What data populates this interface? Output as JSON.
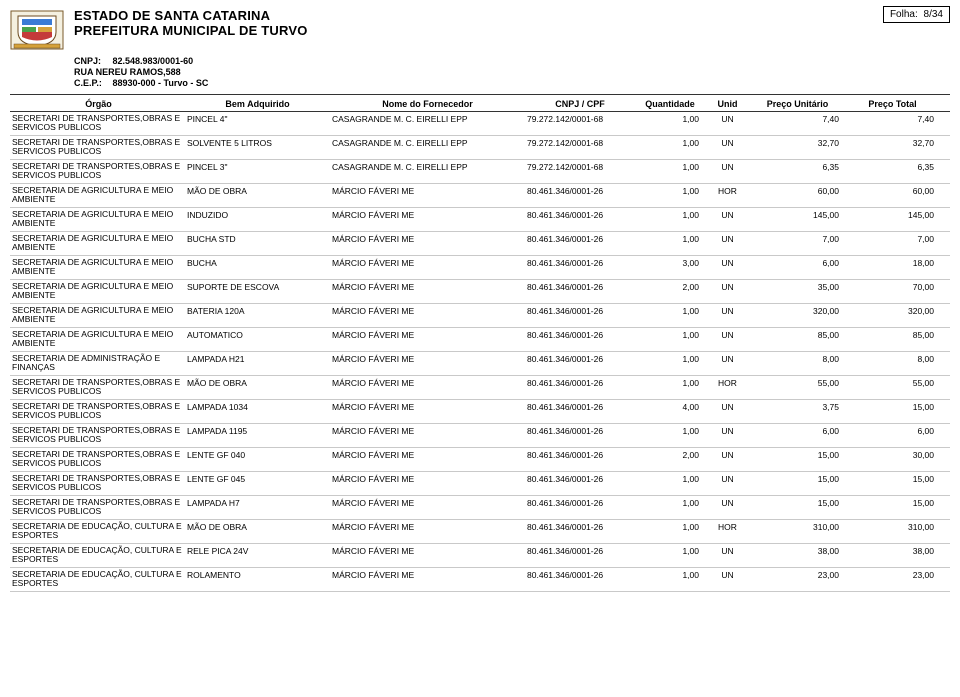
{
  "folha": {
    "label": "Folha:",
    "value": "8/34"
  },
  "header": {
    "title1": "ESTADO DE SANTA CATARINA",
    "title2": "PREFEITURA MUNICIPAL DE TURVO",
    "cnpj_label": "CNPJ:",
    "cnpj_value": "82.548.983/0001-60",
    "addr": "RUA NEREU RAMOS,588",
    "cep_label": "C.E.P.:",
    "cep_value": "88930-000   -   Turvo - SC"
  },
  "columns": {
    "orgao": "Órgão",
    "bem": "Bem Adquirido",
    "fornecedor": "Nome do Fornecedor",
    "cnpj": "CNPJ / CPF",
    "qtd": "Quantidade",
    "unid": "Unid",
    "pu": "Preço Unitário",
    "pt": "Preço Total"
  },
  "rows": [
    {
      "orgao": "SECRETARI DE TRANSPORTES,OBRAS E SERVICOS PUBLICOS",
      "bem": "PINCEL 4\"",
      "forn": "CASAGRANDE M. C. EIRELLI  EPP",
      "cnpj": "79.272.142/0001-68",
      "qtd": "1,00",
      "unid": "UN",
      "pu": "7,40",
      "pt": "7,40"
    },
    {
      "orgao": "SECRETARI DE TRANSPORTES,OBRAS E SERVICOS PUBLICOS",
      "bem": "SOLVENTE 5 LITROS",
      "forn": "CASAGRANDE M. C. EIRELLI  EPP",
      "cnpj": "79.272.142/0001-68",
      "qtd": "1,00",
      "unid": "UN",
      "pu": "32,70",
      "pt": "32,70"
    },
    {
      "orgao": "SECRETARI DE TRANSPORTES,OBRAS E SERVICOS PUBLICOS",
      "bem": "PINCEL 3\"",
      "forn": "CASAGRANDE M. C. EIRELLI  EPP",
      "cnpj": "79.272.142/0001-68",
      "qtd": "1,00",
      "unid": "UN",
      "pu": "6,35",
      "pt": "6,35"
    },
    {
      "orgao": "SECRETARIA DE AGRICULTURA E MEIO AMBIENTE",
      "bem": "MÃO DE OBRA",
      "forn": "MÁRCIO FÁVERI ME",
      "cnpj": "80.461.346/0001-26",
      "qtd": "1,00",
      "unid": "HOR",
      "pu": "60,00",
      "pt": "60,00"
    },
    {
      "orgao": "SECRETARIA DE AGRICULTURA E MEIO AMBIENTE",
      "bem": "INDUZIDO",
      "forn": "MÁRCIO FÁVERI ME",
      "cnpj": "80.461.346/0001-26",
      "qtd": "1,00",
      "unid": "UN",
      "pu": "145,00",
      "pt": "145,00"
    },
    {
      "orgao": "SECRETARIA DE AGRICULTURA E MEIO AMBIENTE",
      "bem": "BUCHA STD",
      "forn": "MÁRCIO FÁVERI ME",
      "cnpj": "80.461.346/0001-26",
      "qtd": "1,00",
      "unid": "UN",
      "pu": "7,00",
      "pt": "7,00"
    },
    {
      "orgao": "SECRETARIA DE AGRICULTURA E MEIO AMBIENTE",
      "bem": "BUCHA",
      "forn": "MÁRCIO FÁVERI ME",
      "cnpj": "80.461.346/0001-26",
      "qtd": "3,00",
      "unid": "UN",
      "pu": "6,00",
      "pt": "18,00"
    },
    {
      "orgao": "SECRETARIA DE AGRICULTURA E MEIO AMBIENTE",
      "bem": "SUPORTE DE ESCOVA",
      "forn": "MÁRCIO FÁVERI ME",
      "cnpj": "80.461.346/0001-26",
      "qtd": "2,00",
      "unid": "UN",
      "pu": "35,00",
      "pt": "70,00"
    },
    {
      "orgao": "SECRETARIA DE AGRICULTURA E MEIO AMBIENTE",
      "bem": "BATERIA 120A",
      "forn": "MÁRCIO FÁVERI ME",
      "cnpj": "80.461.346/0001-26",
      "qtd": "1,00",
      "unid": "UN",
      "pu": "320,00",
      "pt": "320,00"
    },
    {
      "orgao": "SECRETARIA DE AGRICULTURA E MEIO AMBIENTE",
      "bem": "AUTOMATICO",
      "forn": "MÁRCIO FÁVERI ME",
      "cnpj": "80.461.346/0001-26",
      "qtd": "1,00",
      "unid": "UN",
      "pu": "85,00",
      "pt": "85,00"
    },
    {
      "orgao": "SECRETARIA DE ADMINISTRAÇÃO E FINANÇAS",
      "bem": "LAMPADA H21",
      "forn": "MÁRCIO FÁVERI ME",
      "cnpj": "80.461.346/0001-26",
      "qtd": "1,00",
      "unid": "UN",
      "pu": "8,00",
      "pt": "8,00"
    },
    {
      "orgao": "SECRETARI DE TRANSPORTES,OBRAS E SERVICOS PUBLICOS",
      "bem": "MÃO DE OBRA",
      "forn": "MÁRCIO FÁVERI ME",
      "cnpj": "80.461.346/0001-26",
      "qtd": "1,00",
      "unid": "HOR",
      "pu": "55,00",
      "pt": "55,00"
    },
    {
      "orgao": "SECRETARI DE TRANSPORTES,OBRAS E SERVICOS PUBLICOS",
      "bem": "LAMPADA 1034",
      "forn": "MÁRCIO FÁVERI ME",
      "cnpj": "80.461.346/0001-26",
      "qtd": "4,00",
      "unid": "UN",
      "pu": "3,75",
      "pt": "15,00"
    },
    {
      "orgao": "SECRETARI DE TRANSPORTES,OBRAS E SERVICOS PUBLICOS",
      "bem": "LAMPADA 1195",
      "forn": "MÁRCIO FÁVERI ME",
      "cnpj": "80.461.346/0001-26",
      "qtd": "1,00",
      "unid": "UN",
      "pu": "6,00",
      "pt": "6,00"
    },
    {
      "orgao": "SECRETARI DE TRANSPORTES,OBRAS E SERVICOS PUBLICOS",
      "bem": "LENTE GF 040",
      "forn": "MÁRCIO FÁVERI ME",
      "cnpj": "80.461.346/0001-26",
      "qtd": "2,00",
      "unid": "UN",
      "pu": "15,00",
      "pt": "30,00"
    },
    {
      "orgao": "SECRETARI DE TRANSPORTES,OBRAS E SERVICOS PUBLICOS",
      "bem": "LENTE GF 045",
      "forn": "MÁRCIO FÁVERI ME",
      "cnpj": "80.461.346/0001-26",
      "qtd": "1,00",
      "unid": "UN",
      "pu": "15,00",
      "pt": "15,00"
    },
    {
      "orgao": "SECRETARI DE TRANSPORTES,OBRAS E SERVICOS PUBLICOS",
      "bem": "LAMPADA H7",
      "forn": "MÁRCIO FÁVERI ME",
      "cnpj": "80.461.346/0001-26",
      "qtd": "1,00",
      "unid": "UN",
      "pu": "15,00",
      "pt": "15,00"
    },
    {
      "orgao": "SECRETARIA DE EDUCAÇÃO, CULTURA E ESPORTES",
      "bem": "MÃO DE OBRA",
      "forn": "MÁRCIO FÁVERI ME",
      "cnpj": "80.461.346/0001-26",
      "qtd": "1,00",
      "unid": "HOR",
      "pu": "310,00",
      "pt": "310,00"
    },
    {
      "orgao": "SECRETARIA DE EDUCAÇÃO, CULTURA E ESPORTES",
      "bem": "RELE PICA 24V",
      "forn": "MÁRCIO FÁVERI ME",
      "cnpj": "80.461.346/0001-26",
      "qtd": "1,00",
      "unid": "UN",
      "pu": "38,00",
      "pt": "38,00"
    },
    {
      "orgao": "SECRETARIA DE EDUCAÇÃO, CULTURA E ESPORTES",
      "bem": "ROLAMENTO",
      "forn": "MÁRCIO FÁVERI ME",
      "cnpj": "80.461.346/0001-26",
      "qtd": "1,00",
      "unid": "UN",
      "pu": "23,00",
      "pt": "23,00"
    }
  ]
}
